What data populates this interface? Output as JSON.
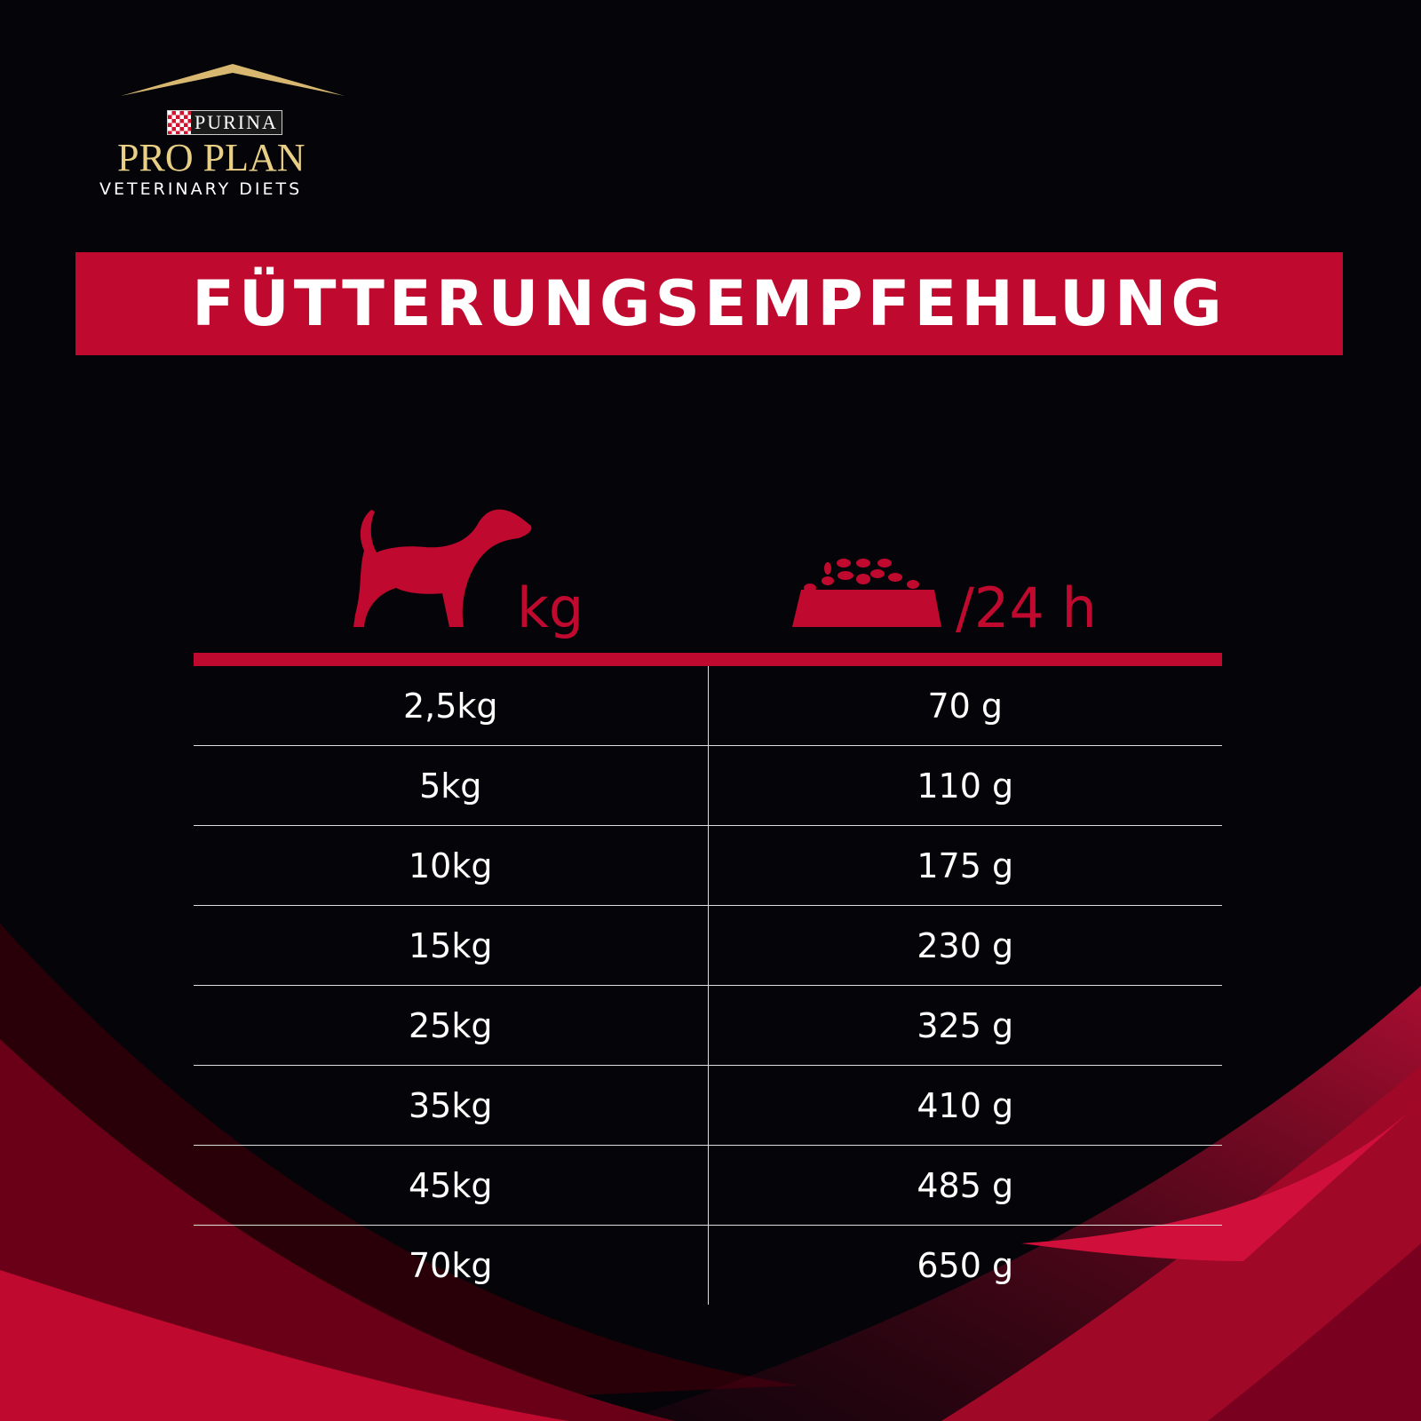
{
  "brand": {
    "purina": "PURINA",
    "proplan": "PRO PLAN",
    "line": "VETERINARY DIETS",
    "registered": "®"
  },
  "title": "FÜTTERUNGSEMPFEHLUNG",
  "headers": {
    "weight_unit": "kg",
    "amount_unit": "/24 h",
    "weight_icon": "dog-icon",
    "amount_icon": "food-bowl-icon"
  },
  "colors": {
    "accent": "#c0092f",
    "background": "#050509",
    "gold": "#e9cf86"
  },
  "rows": [
    {
      "weight": "2,5kg",
      "amount": "70 g"
    },
    {
      "weight": "5kg",
      "amount": "110 g"
    },
    {
      "weight": "10kg",
      "amount": "175 g"
    },
    {
      "weight": "15kg",
      "amount": "230 g"
    },
    {
      "weight": "25kg",
      "amount": "325 g"
    },
    {
      "weight": "35kg",
      "amount": "410 g"
    },
    {
      "weight": "45kg",
      "amount": "485 g"
    },
    {
      "weight": "70kg",
      "amount": "650 g"
    }
  ]
}
